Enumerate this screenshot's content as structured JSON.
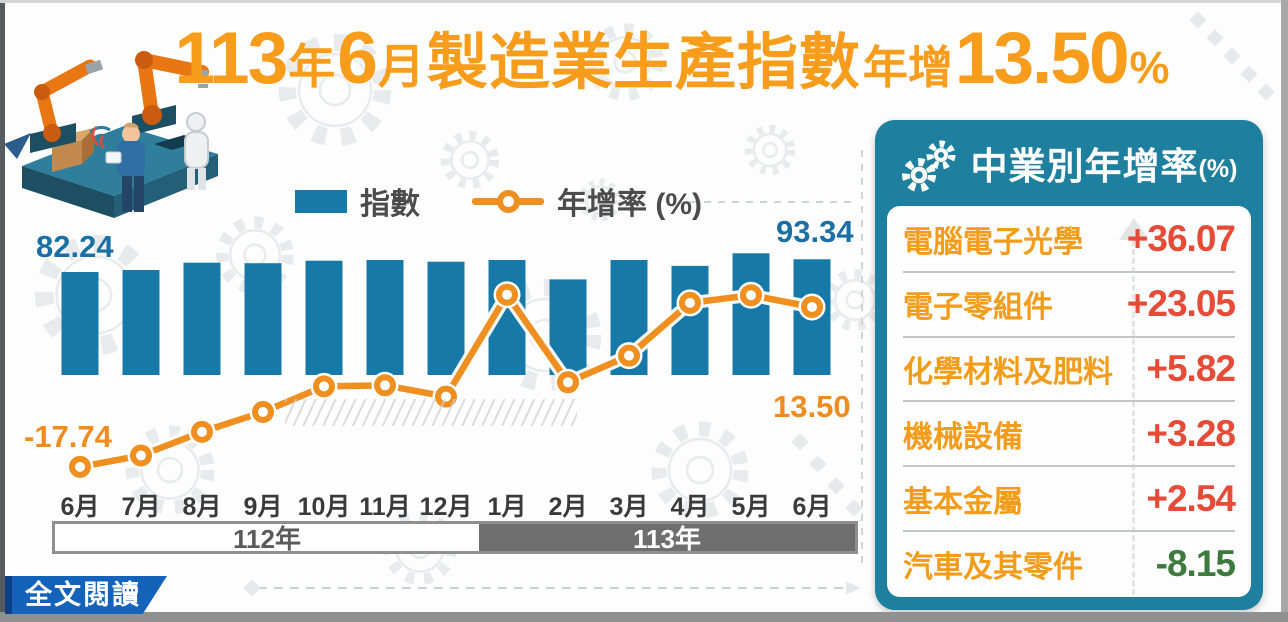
{
  "title": {
    "year": "113",
    "year_suffix": "年",
    "month": "6",
    "month_suffix": "月",
    "subject": "製造業生產指數",
    "growth_label": "年增",
    "growth_value": "13.50",
    "percent": "%"
  },
  "legend": {
    "bar_label": "指數",
    "line_label": "年增率 (%)"
  },
  "chart_data": {
    "type": "bar+line",
    "categories": [
      "6月",
      "7月",
      "8月",
      "9月",
      "10月",
      "11月",
      "12月",
      "1月",
      "2月",
      "3月",
      "4月",
      "5月",
      "6月"
    ],
    "year_bands": [
      {
        "label": "112年",
        "span_months": 7
      },
      {
        "label": "113年",
        "span_months": 6
      }
    ],
    "series": [
      {
        "name": "指數",
        "type": "bar",
        "color": "#1779a7",
        "values": [
          82.24,
          84.0,
          90.4,
          89.9,
          92.1,
          92.7,
          91.2,
          92.7,
          75.8,
          92.7,
          87.6,
          98.6,
          93.34
        ]
      },
      {
        "name": "年增率 (%)",
        "type": "line",
        "color": "#ef8f1f",
        "values": [
          -17.74,
          -15.5,
          -10.9,
          -7.0,
          -2.0,
          -1.8,
          -4.0,
          15.9,
          -1.2,
          4.0,
          14.3,
          15.8,
          13.5
        ]
      }
    ],
    "point_labels": {
      "bar_first": "82.24",
      "bar_last": "93.34",
      "line_first": "-17.74",
      "line_last": "13.50"
    },
    "legend_position": "top-center",
    "grid": false
  },
  "panel": {
    "title": "中業別年增率",
    "unit": "(%)",
    "rows": [
      {
        "label": "電腦電子光學",
        "value": "+36.07"
      },
      {
        "label": "電子零組件",
        "value": "+23.05"
      },
      {
        "label": "化學材料及肥料",
        "value": "+5.82"
      },
      {
        "label": "機械設備",
        "value": "+3.28"
      },
      {
        "label": "基本金屬",
        "value": "+2.54"
      },
      {
        "label": "汽車及其零件",
        "value": "-8.15"
      }
    ]
  },
  "footer": {
    "read_more": "全文閱讀"
  },
  "colors": {
    "title_orange": "#f89c1b",
    "line_orange": "#ef8f1f",
    "bar_blue": "#1779a7",
    "panel_teal": "#1f7f9f",
    "value_red": "#e64b38",
    "value_green": "#3d7a3d",
    "label_blue": "#1a6fa5",
    "button_blue": "#1562bb"
  }
}
